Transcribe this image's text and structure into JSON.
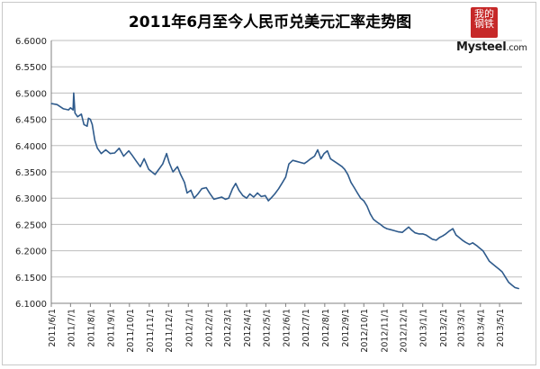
{
  "chart_data": {
    "type": "line",
    "title": "2011年6月至今人民币兑美元汇率走势图",
    "xlabel": "",
    "ylabel": "",
    "ylim": [
      6.1,
      6.6
    ],
    "yticks": [
      "6.1000",
      "6.1500",
      "6.2000",
      "6.2500",
      "6.3000",
      "6.3500",
      "6.4000",
      "6.4500",
      "6.5000",
      "6.5500",
      "6.6000"
    ],
    "xticks": [
      "2011/6/1",
      "2011/7/1",
      "2011/8/1",
      "2011/9/1",
      "2011/10/1",
      "2011/11/1",
      "2011/12/1",
      "2012/1/1",
      "2012/2/1",
      "2012/3/1",
      "2012/4/1",
      "2012/5/1",
      "2012/6/1",
      "2012/7/1",
      "2012/8/1",
      "2012/9/1",
      "2012/10/1",
      "2012/11/1",
      "2012/12/1",
      "2013/1/1",
      "2013/2/1",
      "2013/3/1",
      "2013/4/1",
      "2013/5/1"
    ],
    "grid": true,
    "legend": "none",
    "series": [
      {
        "color": "#2f5b8c",
        "points": [
          [
            "2011-06-01",
            6.48
          ],
          [
            "2011-06-10",
            6.478
          ],
          [
            "2011-06-20",
            6.47
          ],
          [
            "2011-06-28",
            6.468
          ],
          [
            "2011-07-01",
            6.472
          ],
          [
            "2011-07-05",
            6.468
          ],
          [
            "2011-07-06",
            6.5
          ],
          [
            "2011-07-08",
            6.462
          ],
          [
            "2011-07-12",
            6.455
          ],
          [
            "2011-07-18",
            6.46
          ],
          [
            "2011-07-22",
            6.44
          ],
          [
            "2011-07-27",
            6.437
          ],
          [
            "2011-07-29",
            6.452
          ],
          [
            "2011-08-01",
            6.45
          ],
          [
            "2011-08-04",
            6.44
          ],
          [
            "2011-08-08",
            6.41
          ],
          [
            "2011-08-12",
            6.395
          ],
          [
            "2011-08-18",
            6.385
          ],
          [
            "2011-08-25",
            6.392
          ],
          [
            "2011-09-01",
            6.385
          ],
          [
            "2011-09-08",
            6.386
          ],
          [
            "2011-09-15",
            6.395
          ],
          [
            "2011-09-22",
            6.38
          ],
          [
            "2011-09-30",
            6.39
          ],
          [
            "2011-10-05",
            6.382
          ],
          [
            "2011-10-12",
            6.37
          ],
          [
            "2011-10-18",
            6.36
          ],
          [
            "2011-10-24",
            6.375
          ],
          [
            "2011-10-31",
            6.355
          ],
          [
            "2011-11-05",
            6.35
          ],
          [
            "2011-11-10",
            6.345
          ],
          [
            "2011-11-16",
            6.355
          ],
          [
            "2011-11-22",
            6.365
          ],
          [
            "2011-11-28",
            6.385
          ],
          [
            "2011-12-02",
            6.368
          ],
          [
            "2011-12-08",
            6.35
          ],
          [
            "2011-12-15",
            6.36
          ],
          [
            "2011-12-20",
            6.345
          ],
          [
            "2011-12-26",
            6.33
          ],
          [
            "2011-12-30",
            6.31
          ],
          [
            "2012-01-05",
            6.315
          ],
          [
            "2012-01-10",
            6.3
          ],
          [
            "2012-01-16",
            6.308
          ],
          [
            "2012-01-22",
            6.318
          ],
          [
            "2012-01-29",
            6.32
          ],
          [
            "2012-02-03",
            6.31
          ],
          [
            "2012-02-10",
            6.298
          ],
          [
            "2012-02-16",
            6.3
          ],
          [
            "2012-02-22",
            6.302
          ],
          [
            "2012-02-28",
            6.298
          ],
          [
            "2012-03-04",
            6.3
          ],
          [
            "2012-03-10",
            6.318
          ],
          [
            "2012-03-15",
            6.328
          ],
          [
            "2012-03-20",
            6.315
          ],
          [
            "2012-03-26",
            6.305
          ],
          [
            "2012-04-01",
            6.3
          ],
          [
            "2012-04-06",
            6.308
          ],
          [
            "2012-04-12",
            6.302
          ],
          [
            "2012-04-18",
            6.31
          ],
          [
            "2012-04-24",
            6.303
          ],
          [
            "2012-04-30",
            6.305
          ],
          [
            "2012-05-05",
            6.295
          ],
          [
            "2012-05-09",
            6.3
          ],
          [
            "2012-05-15",
            6.308
          ],
          [
            "2012-05-21",
            6.318
          ],
          [
            "2012-05-27",
            6.33
          ],
          [
            "2012-06-01",
            6.34
          ],
          [
            "2012-06-06",
            6.365
          ],
          [
            "2012-06-12",
            6.372
          ],
          [
            "2012-06-18",
            6.37
          ],
          [
            "2012-06-24",
            6.368
          ],
          [
            "2012-06-30",
            6.366
          ],
          [
            "2012-07-05",
            6.37
          ],
          [
            "2012-07-10",
            6.375
          ],
          [
            "2012-07-16",
            6.38
          ],
          [
            "2012-07-21",
            6.392
          ],
          [
            "2012-07-26",
            6.375
          ],
          [
            "2012-07-31",
            6.385
          ],
          [
            "2012-08-05",
            6.39
          ],
          [
            "2012-08-10",
            6.375
          ],
          [
            "2012-08-16",
            6.37
          ],
          [
            "2012-08-22",
            6.365
          ],
          [
            "2012-08-28",
            6.36
          ],
          [
            "2012-09-01",
            6.355
          ],
          [
            "2012-09-06",
            6.345
          ],
          [
            "2012-09-11",
            6.33
          ],
          [
            "2012-09-16",
            6.32
          ],
          [
            "2012-09-21",
            6.31
          ],
          [
            "2012-09-26",
            6.3
          ],
          [
            "2012-10-01",
            6.295
          ],
          [
            "2012-10-06",
            6.285
          ],
          [
            "2012-10-11",
            6.27
          ],
          [
            "2012-10-16",
            6.26
          ],
          [
            "2012-10-21",
            6.255
          ],
          [
            "2012-10-27",
            6.25
          ],
          [
            "2012-11-01",
            6.245
          ],
          [
            "2012-11-06",
            6.242
          ],
          [
            "2012-11-12",
            6.24
          ],
          [
            "2012-11-18",
            6.238
          ],
          [
            "2012-11-24",
            6.236
          ],
          [
            "2012-11-30",
            6.235
          ],
          [
            "2012-12-05",
            6.24
          ],
          [
            "2012-12-10",
            6.245
          ],
          [
            "2012-12-14",
            6.24
          ],
          [
            "2012-12-20",
            6.234
          ],
          [
            "2012-12-26",
            6.232
          ],
          [
            "2013-01-01",
            6.232
          ],
          [
            "2013-01-06",
            6.23
          ],
          [
            "2013-01-11",
            6.226
          ],
          [
            "2013-01-16",
            6.222
          ],
          [
            "2013-01-22",
            6.22
          ],
          [
            "2013-01-27",
            6.225
          ],
          [
            "2013-02-01",
            6.228
          ],
          [
            "2013-02-06",
            6.232
          ],
          [
            "2013-02-12",
            6.238
          ],
          [
            "2013-02-17",
            6.242
          ],
          [
            "2013-02-22",
            6.23
          ],
          [
            "2013-02-27",
            6.225
          ],
          [
            "2013-03-04",
            6.22
          ],
          [
            "2013-03-09",
            6.216
          ],
          [
            "2013-03-15",
            6.212
          ],
          [
            "2013-03-20",
            6.215
          ],
          [
            "2013-03-26",
            6.21
          ],
          [
            "2013-03-31",
            6.205
          ],
          [
            "2013-04-05",
            6.2
          ],
          [
            "2013-04-10",
            6.19
          ],
          [
            "2013-04-15",
            6.18
          ],
          [
            "2013-04-20",
            6.175
          ],
          [
            "2013-04-25",
            6.17
          ],
          [
            "2013-04-30",
            6.165
          ],
          [
            "2013-05-05",
            6.16
          ],
          [
            "2013-05-10",
            6.15
          ],
          [
            "2013-05-15",
            6.14
          ],
          [
            "2013-05-20",
            6.135
          ],
          [
            "2013-05-25",
            6.13
          ],
          [
            "2013-05-31",
            6.128
          ]
        ]
      }
    ]
  },
  "logo": {
    "seal_chars": [
      "我的",
      "钢铁"
    ],
    "wordmark": "Mysteel",
    "wordmark_suffix": ".com"
  },
  "colors": {
    "line": "#2f5b8c",
    "grid": "#bdbdbd",
    "axis": "#808080",
    "seal": "#c62828"
  }
}
